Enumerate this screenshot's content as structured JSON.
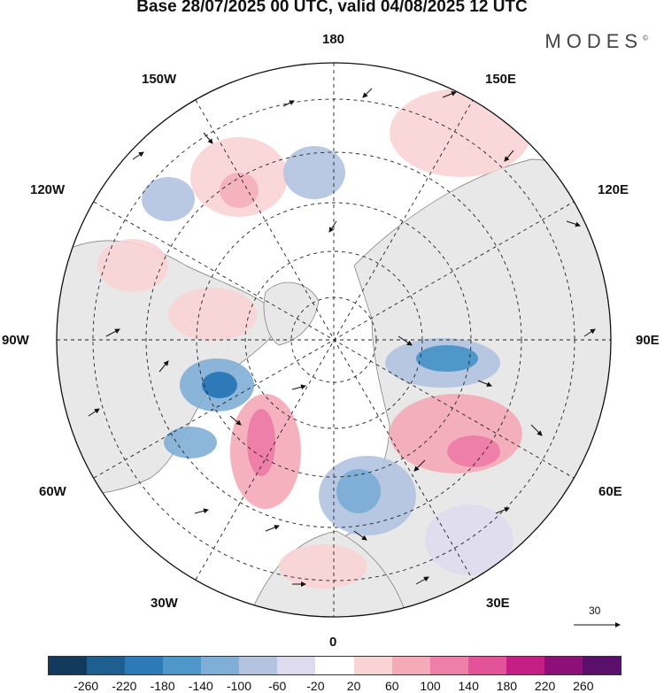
{
  "title": "Base 28/07/2025 00 UTC, valid 04/08/2025 12 UTC",
  "logo": "MODES",
  "logo_mark": "©",
  "longitude_labels": {
    "top": "180",
    "bottom": "0",
    "left": "90W",
    "right": "90E",
    "upper_left_1": "150W",
    "upper_left_2": "120W",
    "lower_left_1": "60W",
    "lower_left_2": "30W",
    "upper_right_1": "150E",
    "upper_right_2": "120E",
    "lower_right_1": "60E",
    "lower_right_2": "30E"
  },
  "vector_scale": "30",
  "colorbar": {
    "colors": [
      "#123a5c",
      "#1e5f8f",
      "#2e7ab8",
      "#4f97c9",
      "#7fafd6",
      "#b3c3e0",
      "#dedbee",
      "#ffffff",
      "#f9d4d6",
      "#f4aab7",
      "#ee7fa9",
      "#e35399",
      "#c61f84",
      "#8f0f78",
      "#5a0f6b"
    ],
    "ticks": [
      "-260",
      "-220",
      "-180",
      "-140",
      "-100",
      "-60",
      "-20",
      "20",
      "60",
      "100",
      "140",
      "180",
      "220",
      "260"
    ]
  }
}
